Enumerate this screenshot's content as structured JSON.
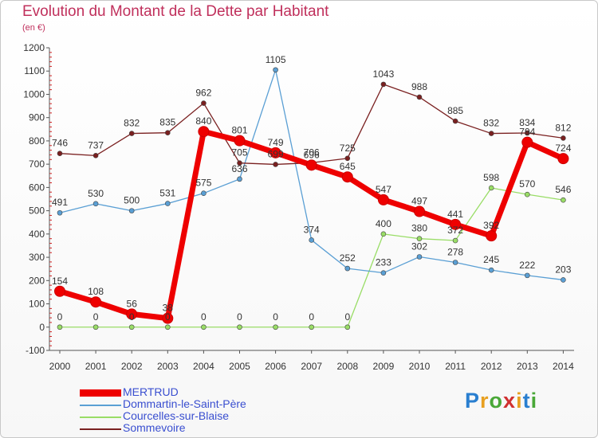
{
  "header": {
    "title": "Evolution du Montant de la Dette par Habitant",
    "subtitle": "(en €)"
  },
  "logo": {
    "text": "Proxiti",
    "letters": [
      "P",
      "r",
      "o",
      "x",
      "i",
      "t",
      "i"
    ],
    "colors": [
      "#2a7fd0",
      "#e8a020",
      "#4aa838",
      "#d03030",
      "#e8a020",
      "#2a7fd0",
      "#4aa838"
    ]
  },
  "chart_data": {
    "type": "line",
    "title": "Evolution du Montant de la Dette par Habitant",
    "subtitle": "(en €)",
    "x": [
      "2000",
      "2001",
      "2002",
      "2003",
      "2004",
      "2005",
      "2006",
      "2007",
      "2008",
      "2009",
      "2010",
      "2011",
      "2012",
      "2013",
      "2014"
    ],
    "ylim": [
      -100,
      1200
    ],
    "yticks": [
      -100,
      0,
      100,
      200,
      300,
      400,
      500,
      600,
      700,
      800,
      900,
      1000,
      1100,
      1200
    ],
    "grid": false,
    "legend_position": "bottom-left",
    "series": [
      {
        "name": "MERTRUD",
        "color": "#ee0000",
        "values": [
          154,
          108,
          56,
          38,
          840,
          801,
          749,
          696,
          645,
          547,
          497,
          441,
          392,
          794,
          724
        ],
        "labels": [
          "154",
          "108",
          "56",
          "38",
          "840",
          "801",
          "749",
          "696",
          "645",
          "547",
          "497",
          "441",
          "392",
          "794",
          "724"
        ]
      },
      {
        "name": "Dommartin-le-Saint-Père",
        "color": "#5a9fd4",
        "values": [
          491,
          530,
          500,
          531,
          575,
          636,
          1105,
          374,
          252,
          233,
          302,
          278,
          245,
          222,
          203
        ],
        "labels": [
          "491",
          "530",
          "500",
          "531",
          "575",
          "636",
          "1105",
          "374",
          "252",
          "233",
          "302",
          "278",
          "245",
          "222",
          "203"
        ]
      },
      {
        "name": "Courcelles-sur-Blaise",
        "color": "#99dd66",
        "values": [
          0,
          0,
          0,
          0,
          0,
          0,
          0,
          0,
          0,
          400,
          380,
          372,
          598,
          570,
          546
        ],
        "labels": [
          "0",
          "0",
          "0",
          "0",
          "0",
          "0",
          "0",
          "0",
          "0",
          "400",
          "380",
          "372",
          "598",
          "570",
          "546"
        ]
      },
      {
        "name": "Sommevoire",
        "color": "#7a2020",
        "values": [
          746,
          737,
          832,
          835,
          962,
          705,
          699,
          706,
          725,
          1043,
          988,
          885,
          832,
          834,
          812
        ],
        "labels": [
          "746",
          "737",
          "832",
          "835",
          "962",
          "705",
          "699",
          "706",
          "725",
          "1043",
          "988",
          "885",
          "832",
          "834",
          "812"
        ]
      }
    ]
  }
}
